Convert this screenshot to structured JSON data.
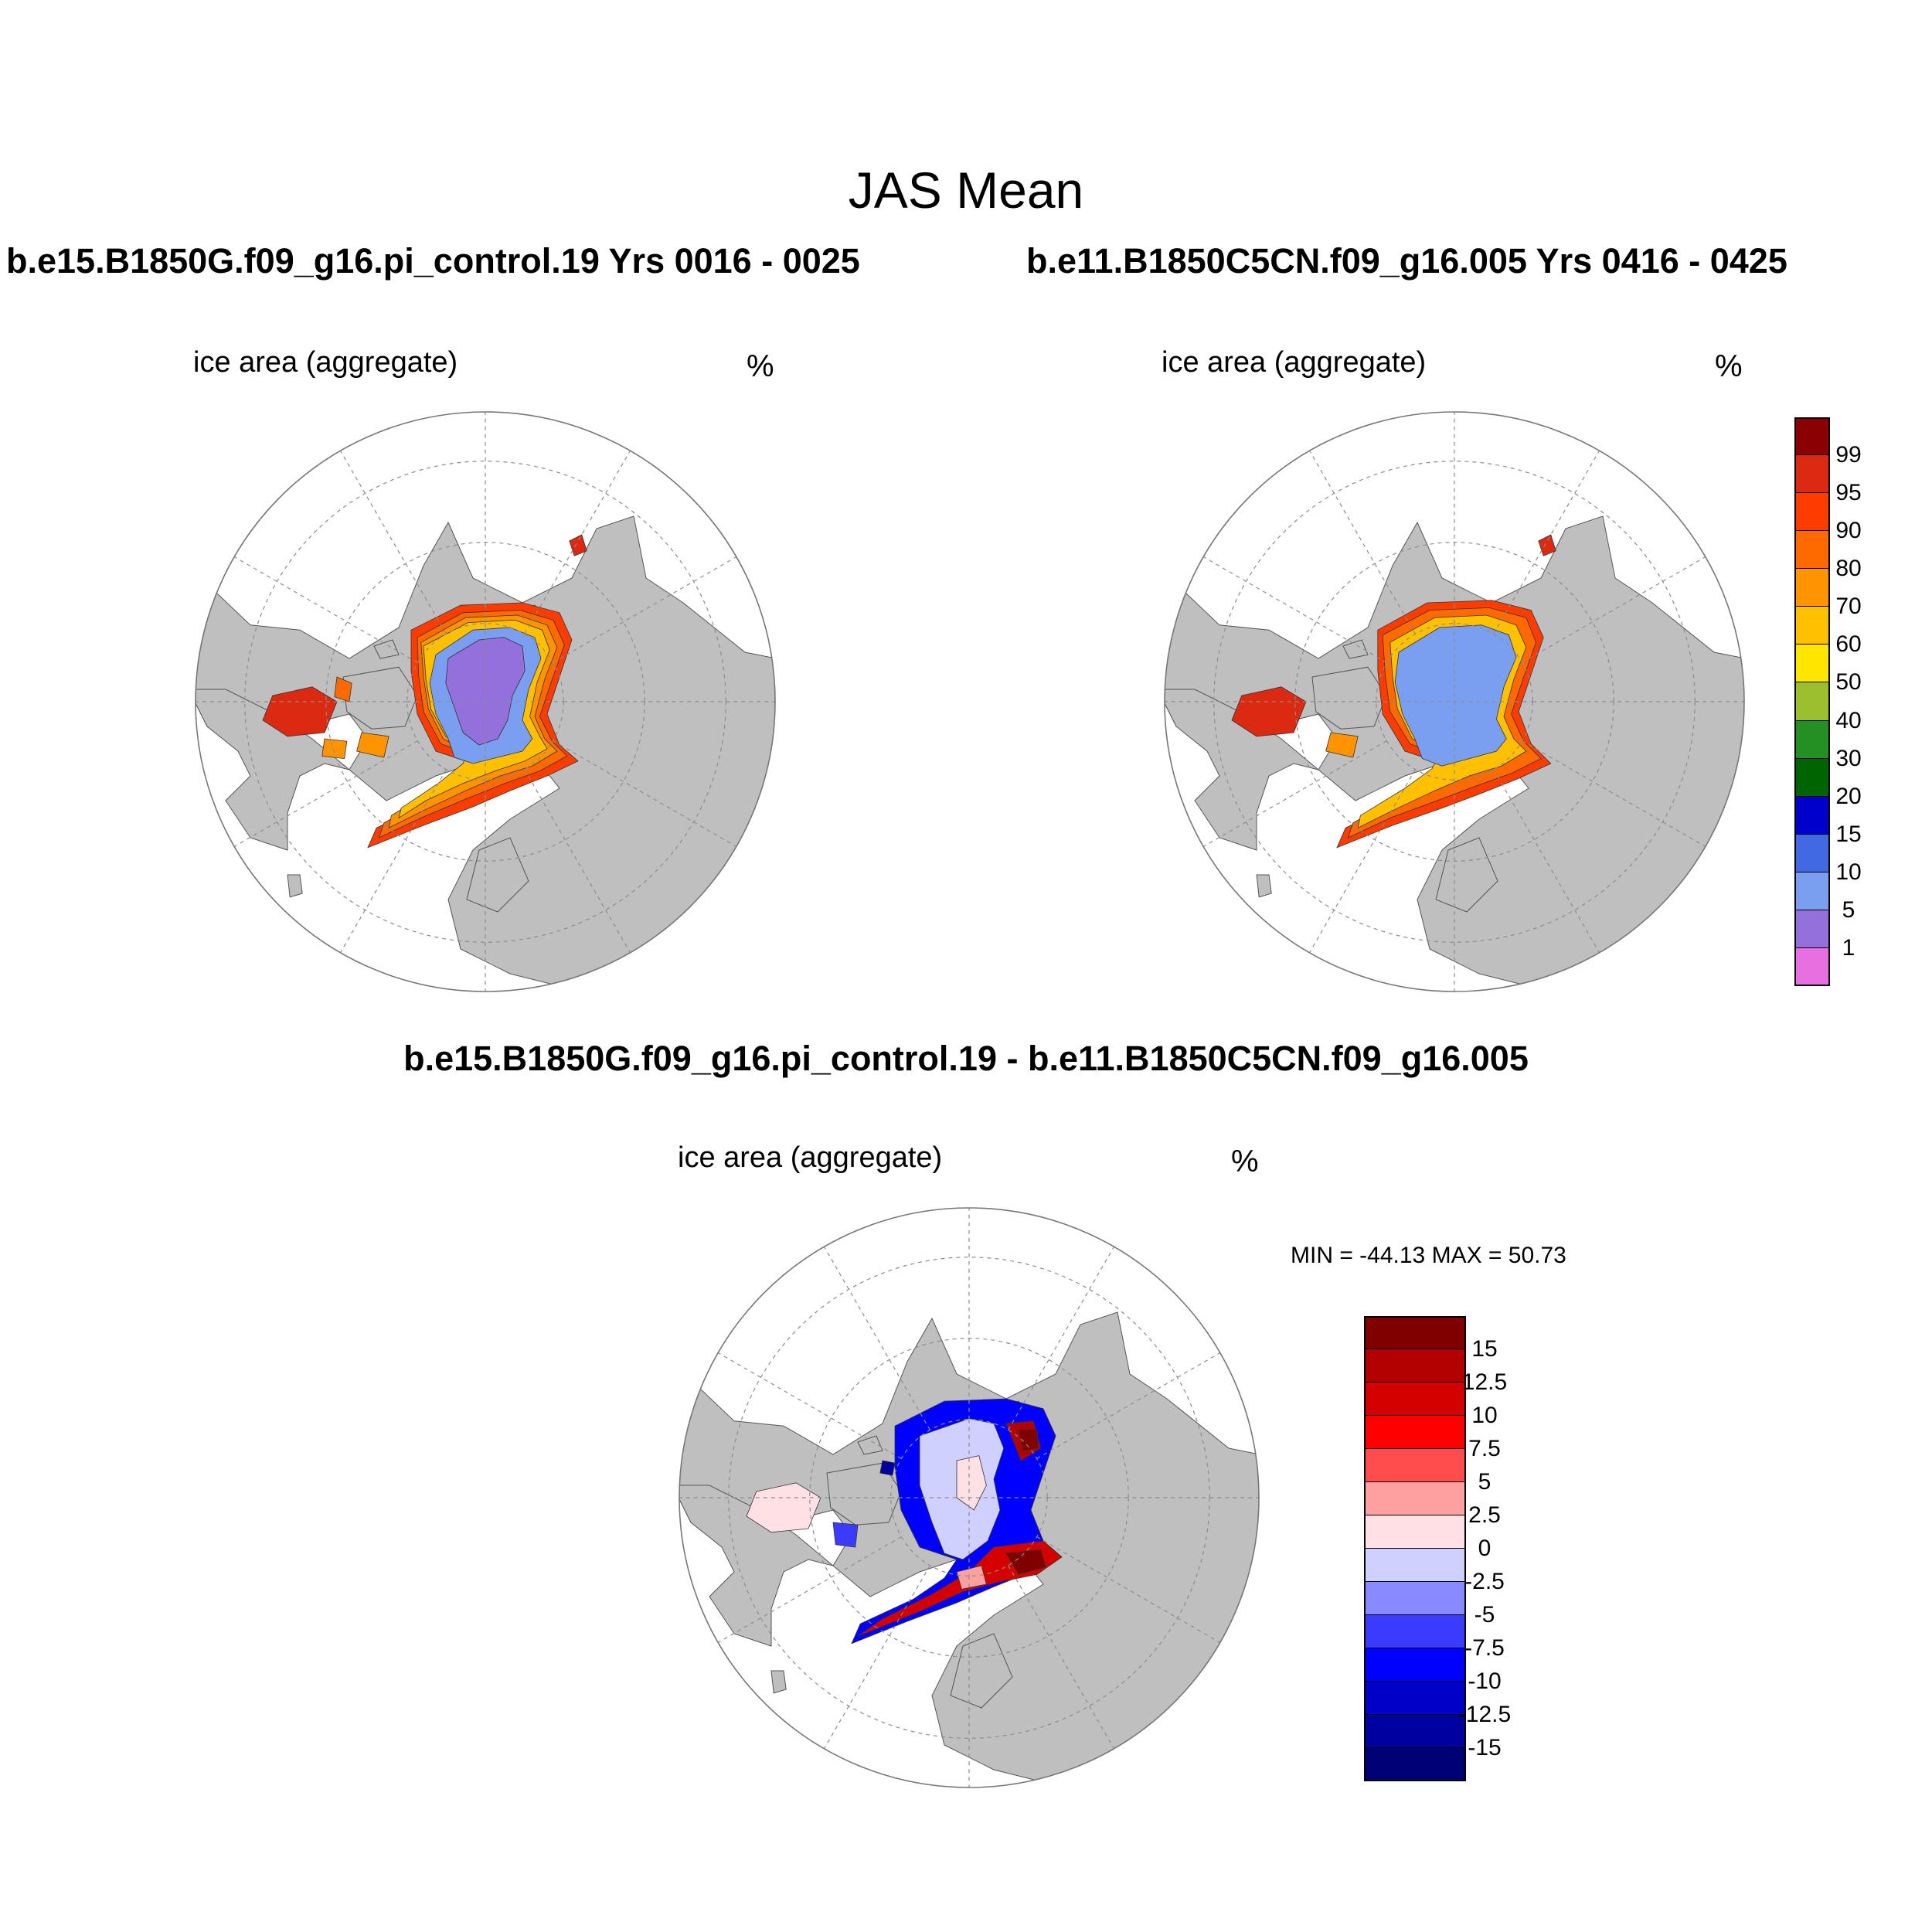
{
  "figure": {
    "title": "JAS Mean",
    "diff_title": "b.e15.B1850G.f09_g16.pi_control.19 - b.e11.B1850C5CN.f09_g16.005",
    "minmax": "MIN = -44.13 MAX =  50.73"
  },
  "panels": [
    {
      "title": "b.e15.B1850G.f09_g16.pi_control.19  Yrs 0016 - 0025",
      "var": "ice area  (aggregate)",
      "units": "%"
    },
    {
      "title": "b.e11.B1850C5CN.f09_g16.005  Yrs 0416 - 0425",
      "var": "ice area  (aggregate)",
      "units": "%"
    },
    {
      "var": "ice area  (aggregate)",
      "units": "%"
    }
  ],
  "colors": {
    "land": "#bfbfbf",
    "ocean": "#ffffff",
    "grid": "#8c8c8c",
    "coast": "#000000"
  },
  "colorbar_ice": {
    "labels": [
      "99",
      "95",
      "90",
      "80",
      "70",
      "60",
      "50",
      "40",
      "30",
      "20",
      "15",
      "10",
      "5",
      "1"
    ],
    "colors": [
      "#8b0000",
      "#dc2a12",
      "#ff3c00",
      "#ff6a00",
      "#ff9400",
      "#ffc000",
      "#ffe600",
      "#9cbf30",
      "#249024",
      "#006400",
      "#0000cd",
      "#4169e1",
      "#7b9ff0",
      "#9370db",
      "#e76fe0"
    ]
  },
  "colorbar_diff": {
    "labels": [
      "15",
      "12.5",
      "10",
      "7.5",
      "5",
      "2.5",
      "0",
      "-2.5",
      "-5",
      "-7.5",
      "-10",
      "-12.5",
      "-15"
    ],
    "colors": [
      "#800000",
      "#b30000",
      "#d40000",
      "#ff0000",
      "#ff4d4d",
      "#ffa0a0",
      "#ffe0e4",
      "#d0d0ff",
      "#8a8aff",
      "#3b3bff",
      "#0000ff",
      "#0000c8",
      "#0000a0",
      "#000075"
    ]
  },
  "chart_data": [
    {
      "type": "heatmap",
      "title": "b.e15.B1850G.f09_g16.pi_control.19  Yrs 0016 - 0025",
      "subtitle": "ice area  (aggregate)",
      "units": "%",
      "levels": [
        1,
        5,
        10,
        15,
        20,
        30,
        40,
        50,
        60,
        70,
        80,
        90,
        95,
        99
      ]
    },
    {
      "type": "heatmap",
      "title": "b.e11.B1850C5CN.f09_g16.005  Yrs 0416 - 0425",
      "subtitle": "ice area  (aggregate)",
      "units": "%",
      "levels": [
        1,
        5,
        10,
        15,
        20,
        30,
        40,
        50,
        60,
        70,
        80,
        90,
        95,
        99
      ]
    },
    {
      "type": "heatmap",
      "title": "b.e15.B1850G.f09_g16.pi_control.19 - b.e11.B1850C5CN.f09_g16.005",
      "subtitle": "ice area  (aggregate)",
      "units": "%",
      "levels": [
        -15,
        -12.5,
        -10,
        -7.5,
        -5,
        -2.5,
        0,
        2.5,
        5,
        7.5,
        10,
        12.5,
        15
      ],
      "min": -44.13,
      "max": 50.73
    }
  ]
}
